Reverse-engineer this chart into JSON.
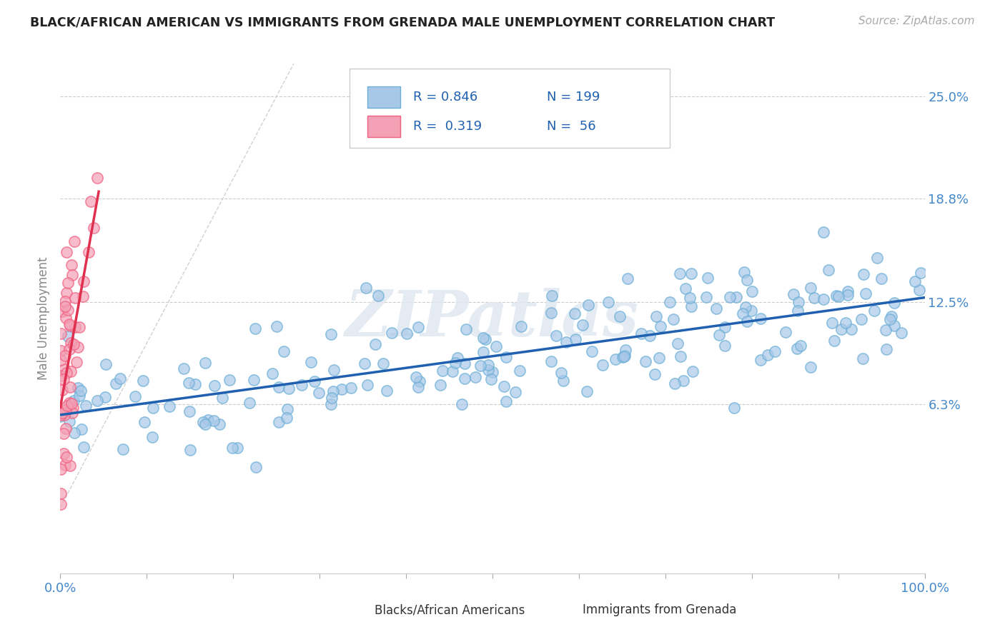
{
  "title": "BLACK/AFRICAN AMERICAN VS IMMIGRANTS FROM GRENADA MALE UNEMPLOYMENT CORRELATION CHART",
  "source": "Source: ZipAtlas.com",
  "ylabel": "Male Unemployment",
  "legend_labels": [
    "Blacks/African Americans",
    "Immigrants from Grenada"
  ],
  "blue_R": 0.846,
  "blue_N": 199,
  "pink_R": 0.319,
  "pink_N": 56,
  "blue_color": "#a8c8e8",
  "pink_color": "#f4a0b5",
  "blue_edge_color": "#6baed6",
  "pink_edge_color": "#f06080",
  "blue_line_color": "#2060b0",
  "pink_line_color": "#e03050",
  "title_color": "#222222",
  "ytick_color": "#4488cc",
  "xtick_color": "#4488cc",
  "legend_text_color": "#2060b0",
  "legend_label_color": "#333333",
  "ytick_labels": [
    "6.3%",
    "12.5%",
    "18.8%",
    "25.0%"
  ],
  "ytick_values": [
    0.063,
    0.125,
    0.188,
    0.25
  ],
  "xtick_labels": [
    "0.0%",
    "100.0%"
  ],
  "xlim": [
    0.0,
    1.0
  ],
  "ylim": [
    -0.04,
    0.27
  ],
  "watermark": "ZIPatlas",
  "background_color": "#ffffff",
  "grid_color": "#cccccc",
  "ref_line_color": "#cccccc"
}
